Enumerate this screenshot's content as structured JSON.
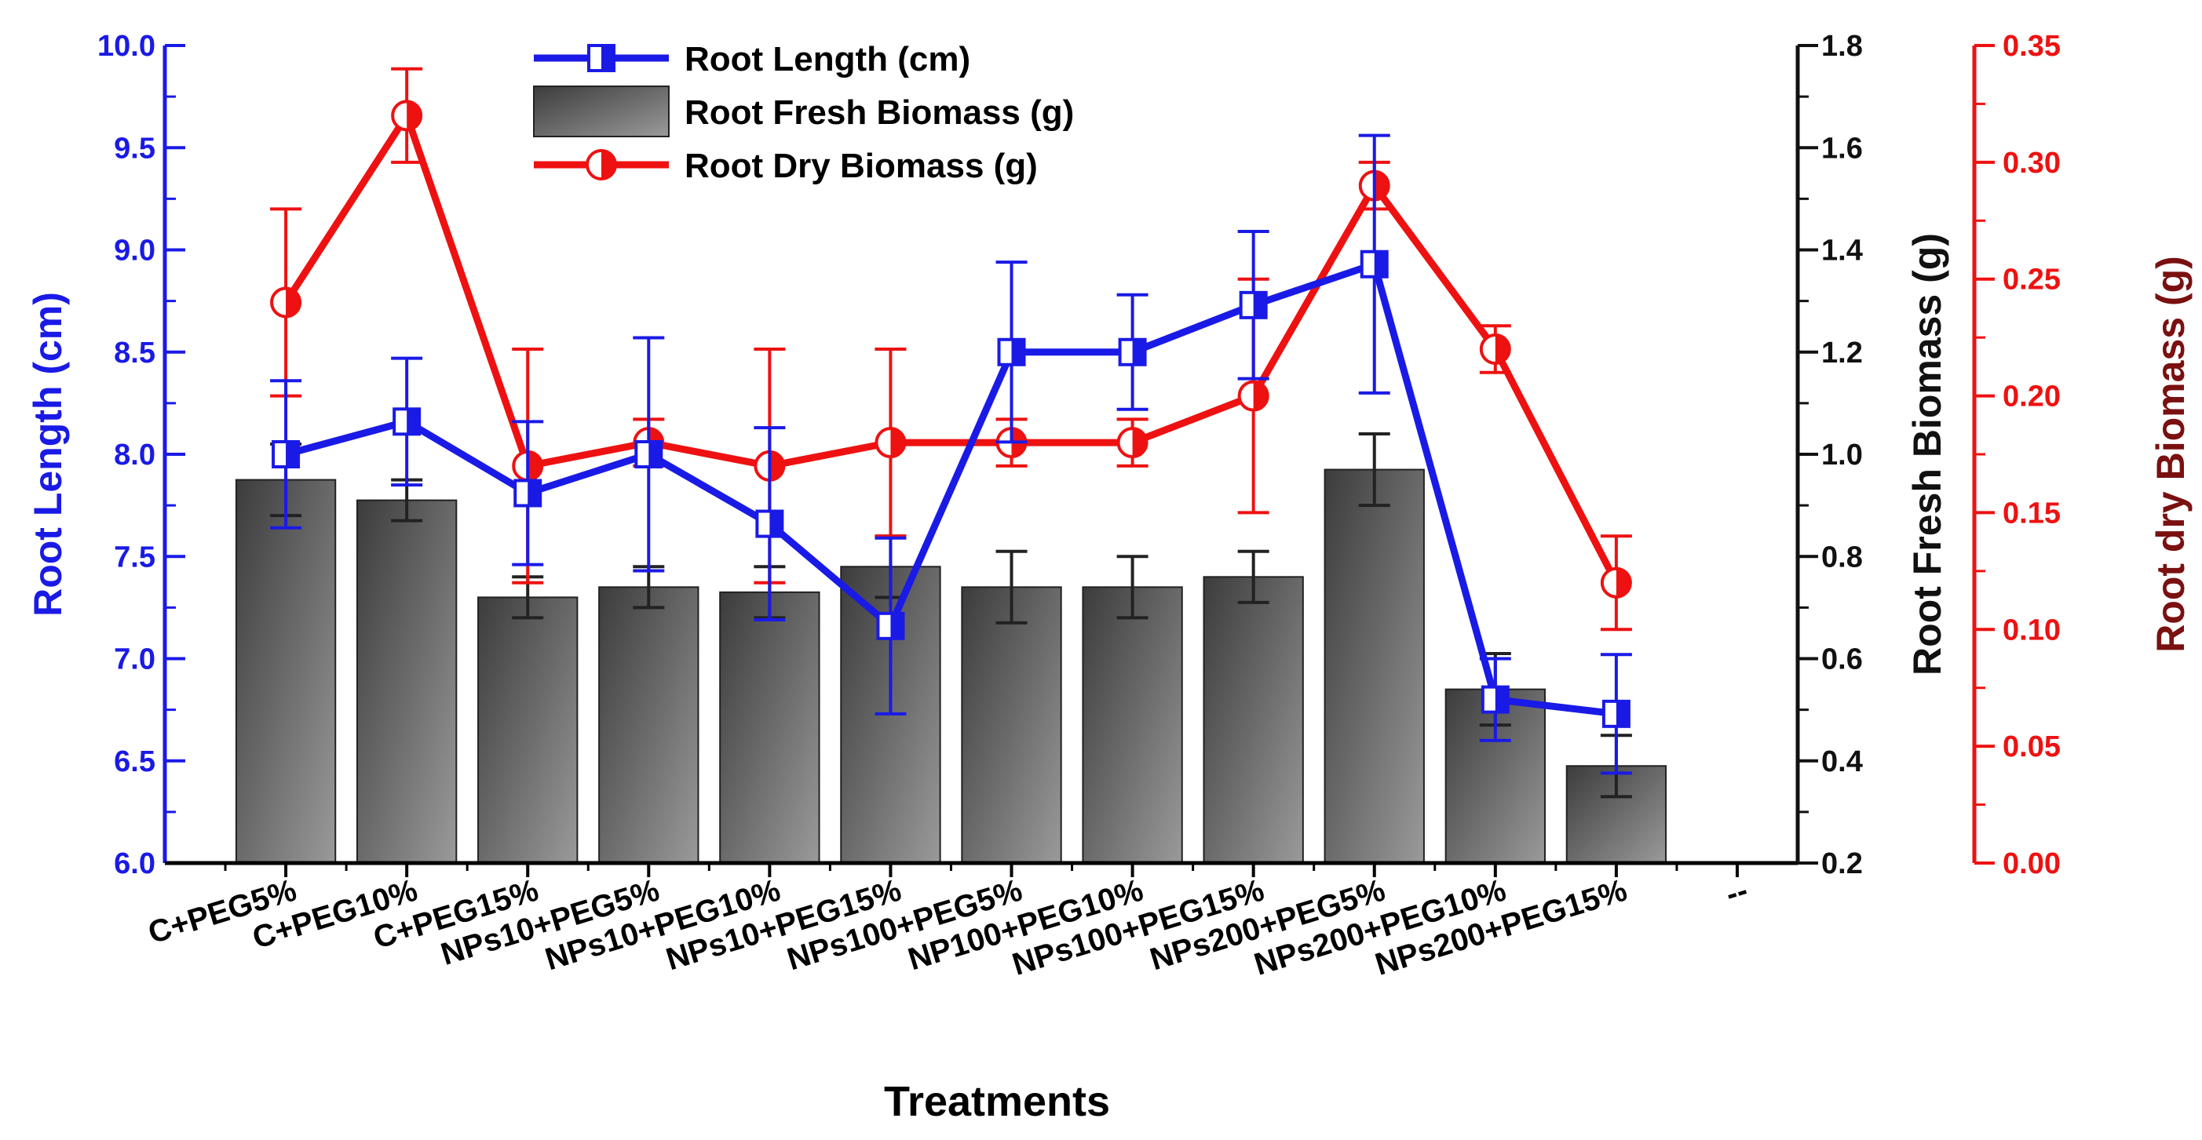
{
  "chart_data": {
    "type": "bar+line",
    "xlabel": "Treatments",
    "categories": [
      "C+PEG5%",
      "C+PEG10%",
      "C+PEG15%",
      "NPs10+PEG5%",
      "NPs10+PEG10%",
      "NPs10+PEG15%",
      "NPs100+PEG5%",
      "NP100+PEG10%",
      "NPs100+PEG15%",
      "NPs200+PEG5%",
      "NPs200+PEG10%",
      "NPs200+PEG15%"
    ],
    "extra_tick_label": "--",
    "axes": {
      "left": {
        "label": "Root Length (cm)",
        "min": 6.0,
        "max": 10.0,
        "step": 0.5,
        "decimals": 1,
        "color": "#1a1ae6"
      },
      "right1": {
        "label": "Root Fresh Biomass (g)",
        "min": 0.2,
        "max": 1.8,
        "step": 0.2,
        "decimals": 1,
        "color": "#111111"
      },
      "right2": {
        "label": "Root dry Biomass (g)",
        "min": 0.0,
        "max": 0.35,
        "step": 0.05,
        "decimals": 2,
        "color": "#ee1111",
        "title_color": "#7a1010"
      }
    },
    "series": [
      {
        "name": "Root Length (cm)",
        "type": "line",
        "axis": "left",
        "color": "#1a1ae6",
        "values": [
          8.0,
          8.16,
          7.81,
          8.0,
          7.66,
          7.16,
          8.5,
          8.5,
          8.73,
          8.93,
          6.8,
          6.73
        ],
        "errors": [
          0.36,
          0.31,
          0.35,
          0.57,
          0.47,
          0.43,
          0.44,
          0.28,
          0.36,
          0.63,
          0.2,
          0.29
        ]
      },
      {
        "name": "Root Fresh Biomass (g)",
        "type": "bar",
        "axis": "right1",
        "color": "#5a5a5a",
        "values": [
          0.95,
          0.91,
          0.72,
          0.74,
          0.73,
          0.78,
          0.74,
          0.74,
          0.76,
          0.97,
          0.54,
          0.39
        ],
        "errors": [
          0.07,
          0.04,
          0.04,
          0.04,
          0.05,
          0.06,
          0.07,
          0.06,
          0.05,
          0.07,
          0.07,
          0.06
        ]
      },
      {
        "name": "Root Dry Biomass (g)",
        "type": "line",
        "axis": "right2",
        "color": "#ee1111",
        "values": [
          0.24,
          0.32,
          0.17,
          0.18,
          0.17,
          0.18,
          0.18,
          0.18,
          0.2,
          0.29,
          0.22,
          0.12
        ],
        "errors": [
          0.04,
          0.02,
          0.05,
          0.01,
          0.05,
          0.04,
          0.01,
          0.01,
          0.05,
          0.01,
          0.01,
          0.02
        ]
      }
    ],
    "legend": {
      "position": "top-center",
      "items": [
        "Root Length (cm)",
        "Root Fresh Biomass (g)",
        "Root Dry Biomass (g)"
      ]
    }
  }
}
